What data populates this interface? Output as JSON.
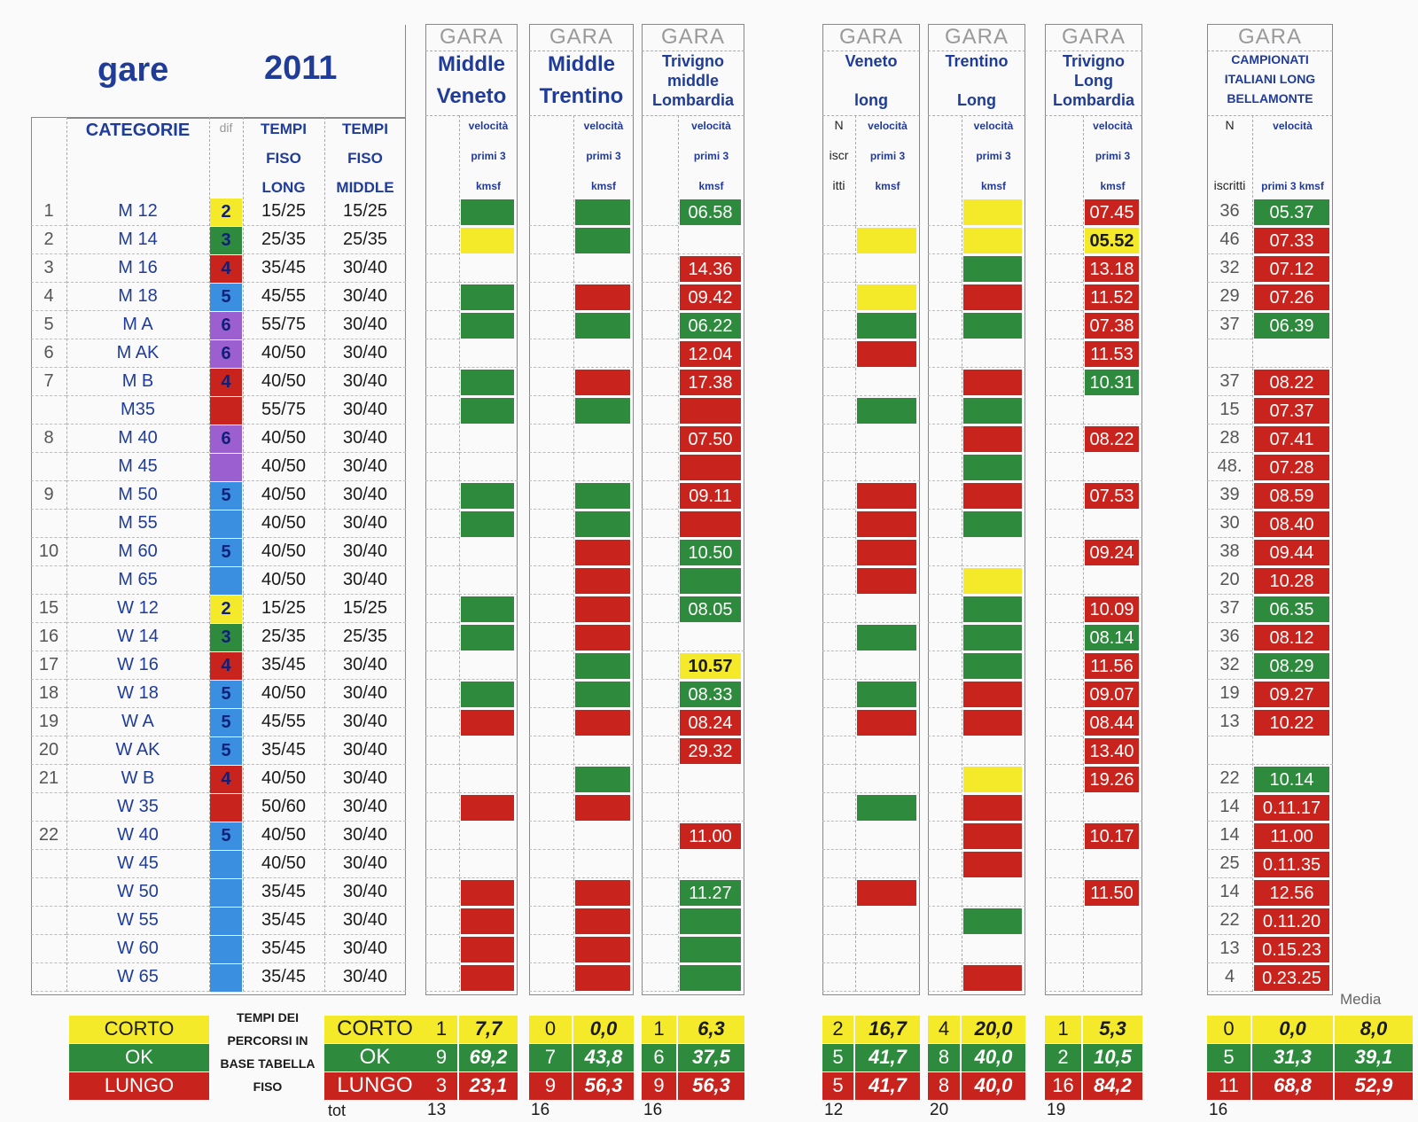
{
  "title": {
    "word": "gare",
    "year": "2011"
  },
  "headers": {
    "categorie": "CATEGORIE",
    "dif": "dif",
    "tempi_long": [
      "TEMPI",
      "FISO",
      "LONG"
    ],
    "tempi_middle": [
      "TEMPI",
      "FISO",
      "MIDDLE"
    ]
  },
  "races": [
    {
      "gara": "GARA",
      "name": [
        "Middle",
        "Veneto"
      ],
      "sub_left": [],
      "sub_right": [
        "velocità",
        "primi 3",
        "kmsf"
      ]
    },
    {
      "gara": "GARA",
      "name": [
        "Middle",
        "Trentino"
      ],
      "sub_left": [],
      "sub_right": [
        "velocità",
        "primi 3",
        "kmsf"
      ]
    },
    {
      "gara": "GARA",
      "name": [
        "Trivigno",
        "middle",
        "Lombardia"
      ],
      "sub_left": [],
      "sub_right": [
        "velocità",
        "primi 3",
        "kmsf"
      ]
    },
    {
      "gara": "GARA",
      "name": [
        "Veneto",
        "",
        "long"
      ],
      "sub_left": [
        "N",
        "iscr",
        "itti"
      ],
      "sub_right": [
        "velocità",
        "primi 3",
        "kmsf"
      ]
    },
    {
      "gara": "GARA",
      "name": [
        "Trentino",
        "",
        "Long"
      ],
      "sub_left": [],
      "sub_right": [
        "velocità",
        "primi 3",
        "kmsf"
      ]
    },
    {
      "gara": "GARA",
      "name": [
        "Trivigno",
        "Long",
        "Lombardia"
      ],
      "sub_left": [],
      "sub_right": [
        "velocità",
        "primi 3",
        "kmsf"
      ]
    },
    {
      "gara": "GARA",
      "name": [
        "CAMPIONATI",
        "ITALIANI LONG",
        "BELLAMONTE"
      ],
      "sub_left": [
        "N",
        "",
        "iscritti"
      ],
      "sub_right": [
        "velocità",
        "",
        "primi 3 kmsf"
      ]
    }
  ],
  "rows": [
    {
      "n": "1",
      "cat": "M 12",
      "dif": "2",
      "difc": "#f4ea2a",
      "long": "15/25",
      "mid": "15/25",
      "r": [
        "g",
        "g",
        "g:06.58",
        "",
        "y",
        "r:07.45",
        "g:05.37"
      ],
      "iscr": "36"
    },
    {
      "n": "2",
      "cat": "M 14",
      "dif": "3",
      "difc": "#2e8b3e",
      "long": "25/35",
      "mid": "25/35",
      "r": [
        "y",
        "g",
        "",
        "y",
        "y",
        "y:05.52",
        "r:07.33"
      ],
      "iscr": "46"
    },
    {
      "n": "3",
      "cat": "M 16",
      "dif": "4",
      "difc": "#c8231c",
      "long": "35/45",
      "mid": "30/40",
      "r": [
        "",
        "",
        "r:14.36",
        "",
        "g",
        "r:13.18",
        "r:07.12"
      ],
      "iscr": "32"
    },
    {
      "n": "4",
      "cat": "M 18",
      "dif": "5",
      "difc": "#3a8fe0",
      "long": "45/55",
      "mid": "30/40",
      "r": [
        "g",
        "r",
        "r:09.42",
        "y",
        "r",
        "r:11.52",
        "r:07.26"
      ],
      "iscr": "29"
    },
    {
      "n": "5",
      "cat": "M A",
      "dif": "6",
      "difc": "#9b5fd0",
      "long": "55/75",
      "mid": "30/40",
      "r": [
        "g",
        "g",
        "g:06.22",
        "g",
        "g",
        "r:07.38",
        "g:06.39"
      ],
      "iscr": "37"
    },
    {
      "n": "6",
      "cat": "M AK",
      "dif": "6",
      "difc": "#9b5fd0",
      "long": "40/50",
      "mid": "30/40",
      "r": [
        "",
        "",
        "r:12.04",
        "r",
        "",
        "r:11.53",
        ""
      ],
      "iscr": ""
    },
    {
      "n": "7",
      "cat": "M B",
      "dif": "4",
      "difc": "#c8231c",
      "long": "40/50",
      "mid": "30/40",
      "r": [
        "g",
        "r",
        "r:17.38",
        "",
        "r",
        "g:10.31",
        "r:08.22"
      ],
      "iscr": "37"
    },
    {
      "n": "",
      "cat": "M35",
      "dif": "",
      "difc": "#c8231c",
      "long": "55/75",
      "mid": "30/40",
      "r": [
        "g",
        "g",
        "r",
        "g",
        "g",
        "",
        "r:07.37"
      ],
      "iscr": "15"
    },
    {
      "n": "8",
      "cat": "M 40",
      "dif": "6",
      "difc": "#9b5fd0",
      "long": "40/50",
      "mid": "30/40",
      "r": [
        "",
        "",
        "r:07.50",
        "",
        "r",
        "r:08.22",
        "r:07.41"
      ],
      "iscr": "28"
    },
    {
      "n": "",
      "cat": "M 45",
      "dif": "",
      "difc": "#9b5fd0",
      "long": "40/50",
      "mid": "30/40",
      "r": [
        "",
        "",
        "r",
        "",
        "g",
        "",
        "r:07.28"
      ],
      "iscr": "48."
    },
    {
      "n": "9",
      "cat": "M 50",
      "dif": "5",
      "difc": "#3a8fe0",
      "long": "40/50",
      "mid": "30/40",
      "r": [
        "g",
        "g",
        "r:09.11",
        "r",
        "r",
        "r:07.53",
        "r:08.59"
      ],
      "iscr": "39"
    },
    {
      "n": "",
      "cat": "M 55",
      "dif": "",
      "difc": "#3a8fe0",
      "long": "40/50",
      "mid": "30/40",
      "r": [
        "g",
        "g",
        "r",
        "r",
        "g",
        "",
        "r:08.40"
      ],
      "iscr": "30"
    },
    {
      "n": "10",
      "cat": "M 60",
      "dif": "5",
      "difc": "#3a8fe0",
      "long": "40/50",
      "mid": "30/40",
      "r": [
        "",
        "r",
        "g:10.50",
        "r",
        "",
        "r:09.24",
        "r:09.44"
      ],
      "iscr": "38"
    },
    {
      "n": "",
      "cat": "M 65",
      "dif": "",
      "difc": "#3a8fe0",
      "long": "40/50",
      "mid": "30/40",
      "r": [
        "",
        "r",
        "g",
        "r",
        "y",
        "",
        "r:10.28"
      ],
      "iscr": "20"
    },
    {
      "n": "15",
      "cat": "W 12",
      "dif": "2",
      "difc": "#f4ea2a",
      "long": "15/25",
      "mid": "15/25",
      "r": [
        "g",
        "r",
        "g:08.05",
        "",
        "g",
        "r:10.09",
        "g:06.35"
      ],
      "iscr": "37"
    },
    {
      "n": "16",
      "cat": "W 14",
      "dif": "3",
      "difc": "#2e8b3e",
      "long": "25/35",
      "mid": "25/35",
      "r": [
        "g",
        "r",
        "",
        "g",
        "g",
        "g:08.14",
        "r:08.12"
      ],
      "iscr": "36"
    },
    {
      "n": "17",
      "cat": "W 16",
      "dif": "4",
      "difc": "#c8231c",
      "long": "35/45",
      "mid": "30/40",
      "r": [
        "",
        "g",
        "y:10.57",
        "",
        "g",
        "r:11.56",
        "g:08.29"
      ],
      "iscr": "32"
    },
    {
      "n": "18",
      "cat": "W 18",
      "dif": "5",
      "difc": "#3a8fe0",
      "long": "40/50",
      "mid": "30/40",
      "r": [
        "g",
        "g",
        "g:08.33",
        "g",
        "r",
        "r:09.07",
        "r:09.27"
      ],
      "iscr": "19"
    },
    {
      "n": "19",
      "cat": "W A",
      "dif": "5",
      "difc": "#3a8fe0",
      "long": "45/55",
      "mid": "30/40",
      "r": [
        "r",
        "r",
        "r:08.24",
        "r",
        "r",
        "r:08.44",
        "r:10.22"
      ],
      "iscr": "13"
    },
    {
      "n": "20",
      "cat": "W AK",
      "dif": "5",
      "difc": "#3a8fe0",
      "long": "35/45",
      "mid": "30/40",
      "r": [
        "",
        "",
        "r:29.32",
        "",
        "",
        "r:13.40",
        ""
      ],
      "iscr": ""
    },
    {
      "n": "21",
      "cat": "W B",
      "dif": "4",
      "difc": "#c8231c",
      "long": "40/50",
      "mid": "30/40",
      "r": [
        "",
        "g",
        "",
        "",
        "y",
        "r:19.26",
        "g:10.14"
      ],
      "iscr": "22"
    },
    {
      "n": "",
      "cat": "W 35",
      "dif": "",
      "difc": "#c8231c",
      "long": "50/60",
      "mid": "30/40",
      "r": [
        "r",
        "r",
        "",
        "g",
        "r",
        "",
        "r:0.11.17"
      ],
      "iscr": "14"
    },
    {
      "n": "22",
      "cat": "W 40",
      "dif": "5",
      "difc": "#3a8fe0",
      "long": "40/50",
      "mid": "30/40",
      "r": [
        "",
        "",
        "r:11.00",
        "",
        "r",
        "r:10.17",
        "r:11.00"
      ],
      "iscr": "14"
    },
    {
      "n": "",
      "cat": "W 45",
      "dif": "",
      "difc": "#3a8fe0",
      "long": "40/50",
      "mid": "30/40",
      "r": [
        "",
        "",
        "",
        "",
        "r",
        "",
        "r:0.11.35"
      ],
      "iscr": "25"
    },
    {
      "n": "",
      "cat": "W 50",
      "dif": "",
      "difc": "#3a8fe0",
      "long": "35/45",
      "mid": "30/40",
      "r": [
        "r",
        "r",
        "g:11.27",
        "r",
        "",
        "r:11.50",
        "r:12.56"
      ],
      "iscr": "14"
    },
    {
      "n": "",
      "cat": "W 55",
      "dif": "",
      "difc": "#3a8fe0",
      "long": "35/45",
      "mid": "30/40",
      "r": [
        "r",
        "r",
        "g",
        "",
        "g",
        "",
        "r:0.11.20"
      ],
      "iscr": "22"
    },
    {
      "n": "",
      "cat": "W 60",
      "dif": "",
      "difc": "#3a8fe0",
      "long": "35/45",
      "mid": "30/40",
      "r": [
        "r",
        "r",
        "g",
        "",
        "",
        "",
        "r:0.15.23"
      ],
      "iscr": "13"
    },
    {
      "n": "",
      "cat": "W 65",
      "dif": "",
      "difc": "#3a8fe0",
      "long": "35/45",
      "mid": "30/40",
      "r": [
        "r",
        "r",
        "g",
        "",
        "r",
        "",
        "r:0.23.25"
      ],
      "iscr": "4"
    }
  ],
  "summary": {
    "legend": [
      "CORTO",
      "OK",
      "LUNGO"
    ],
    "note": [
      "TEMPI DEI",
      "PERCORSI IN",
      "BASE TABELLA",
      "FISO"
    ],
    "labels": [
      "CORTO",
      "OK",
      "LUNGO"
    ],
    "tot_label": "tot",
    "media_label": "Media",
    "races": [
      {
        "corto": [
          "1",
          "7,7"
        ],
        "ok": [
          "9",
          "69,2"
        ],
        "lungo": [
          "3",
          "23,1"
        ],
        "tot": "13"
      },
      {
        "corto": [
          "0",
          "0,0"
        ],
        "ok": [
          "7",
          "43,8"
        ],
        "lungo": [
          "9",
          "56,3"
        ],
        "tot": "16"
      },
      {
        "corto": [
          "1",
          "6,3"
        ],
        "ok": [
          "6",
          "37,5"
        ],
        "lungo": [
          "9",
          "56,3"
        ],
        "tot": "16"
      },
      {
        "corto": [
          "2",
          "16,7"
        ],
        "ok": [
          "5",
          "41,7"
        ],
        "lungo": [
          "5",
          "41,7"
        ],
        "tot": "12"
      },
      {
        "corto": [
          "4",
          "20,0"
        ],
        "ok": [
          "8",
          "40,0"
        ],
        "lungo": [
          "8",
          "40,0"
        ],
        "tot": "20"
      },
      {
        "corto": [
          "1",
          "5,3"
        ],
        "ok": [
          "2",
          "10,5"
        ],
        "lungo": [
          "16",
          "84,2"
        ],
        "tot": "19"
      },
      {
        "corto": [
          "0",
          "0,0"
        ],
        "ok": [
          "5",
          "31,3"
        ],
        "lungo": [
          "11",
          "68,8"
        ],
        "tot": "16"
      }
    ],
    "media": [
      "8,0",
      "39,1",
      "52,9"
    ]
  },
  "colors": {
    "green": "#2e8b3e",
    "red": "#c8231c",
    "yellow": "#f4ea2a"
  }
}
